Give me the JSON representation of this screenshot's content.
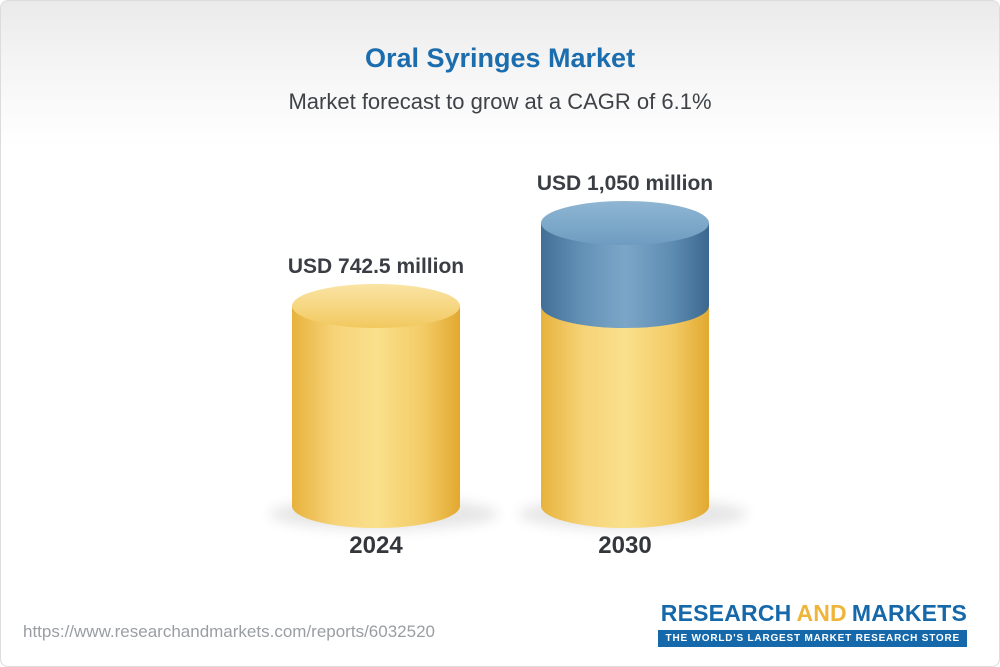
{
  "chart_data": {
    "type": "bar",
    "variant": "3d-cylinder",
    "title": "Oral Syringes Market",
    "subtitle": "Market forecast to grow at a CAGR of 6.1%",
    "cagr_percent": 6.1,
    "unit": "USD million",
    "categories": [
      "2024",
      "2030"
    ],
    "values": [
      742.5,
      1050
    ],
    "value_labels": [
      "USD 742.5 million",
      "USD 1,050 million"
    ],
    "base_value": 742.5,
    "grid": false,
    "axes": false,
    "legend": false,
    "colors": {
      "bar_base": "#F0C049",
      "bar_base_light": "#FAE08C",
      "bar_base_dark": "#E2A930",
      "bar_base_top": "#F6D480",
      "growth": "#5A8BB0",
      "growth_light": "#7CA6C8",
      "growth_dark": "#3C688F",
      "growth_top": "#7FA8C9",
      "title_color": "#1B6DAE",
      "subtitle_color": "#3F4347",
      "label_color": "#3A3E44"
    }
  },
  "footer": {
    "url": "https://www.researchandmarkets.com/reports/6032520",
    "logo": {
      "word1": "RESEARCH",
      "word2": "AND",
      "word3": "MARKETS",
      "tagline": "THE WORLD'S LARGEST MARKET RESEARCH STORE",
      "blue": "#1568A9",
      "gold": "#EFB53B"
    }
  }
}
